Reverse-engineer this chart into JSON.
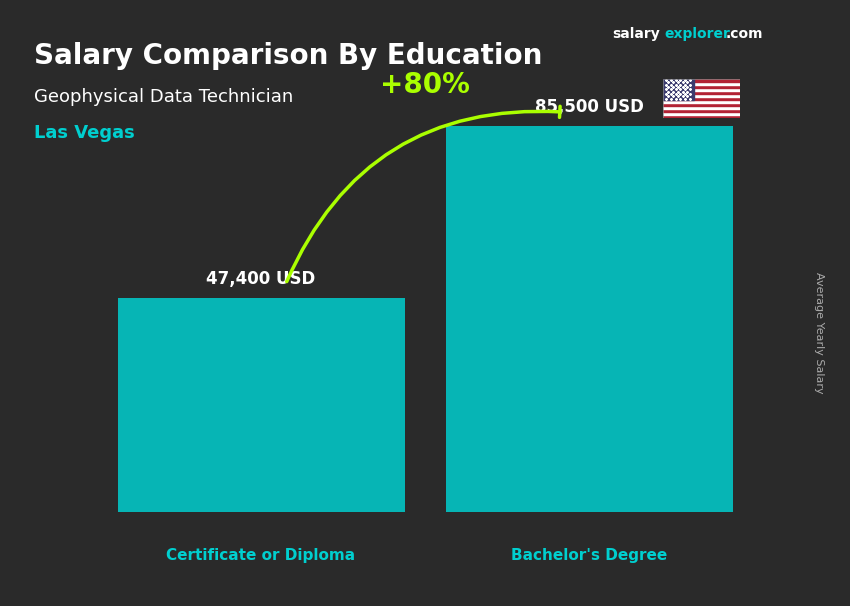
{
  "title_main": "Salary Comparison By Education",
  "title_sub": "Geophysical Data Technician",
  "city": "Las Vegas",
  "categories": [
    "Certificate or Diploma",
    "Bachelor's Degree"
  ],
  "values": [
    47400,
    85500
  ],
  "value_labels": [
    "47,400 USD",
    "85,500 USD"
  ],
  "bar_color": "#00CFCF",
  "bar_alpha": 0.85,
  "pct_change": "+80%",
  "ylabel_rotated": "Average Yearly Salary",
  "bg_color": "#2a2a2a",
  "title_color": "#ffffff",
  "subtitle_color": "#ffffff",
  "city_color": "#00CFCF",
  "bar_label_color": "#ffffff",
  "cat_label_color": "#00CFCF",
  "pct_color": "#aaff00",
  "arrow_color": "#aaff00",
  "site_salary_color": "#ffffff",
  "site_explorer_color": "#00CFCF",
  "site_text": "salary",
  "site_text2": "explorer",
  "site_text3": ".com",
  "bar_width": 0.35,
  "bar_positions": [
    0.3,
    0.7
  ],
  "ylim": [
    0,
    110000
  ]
}
